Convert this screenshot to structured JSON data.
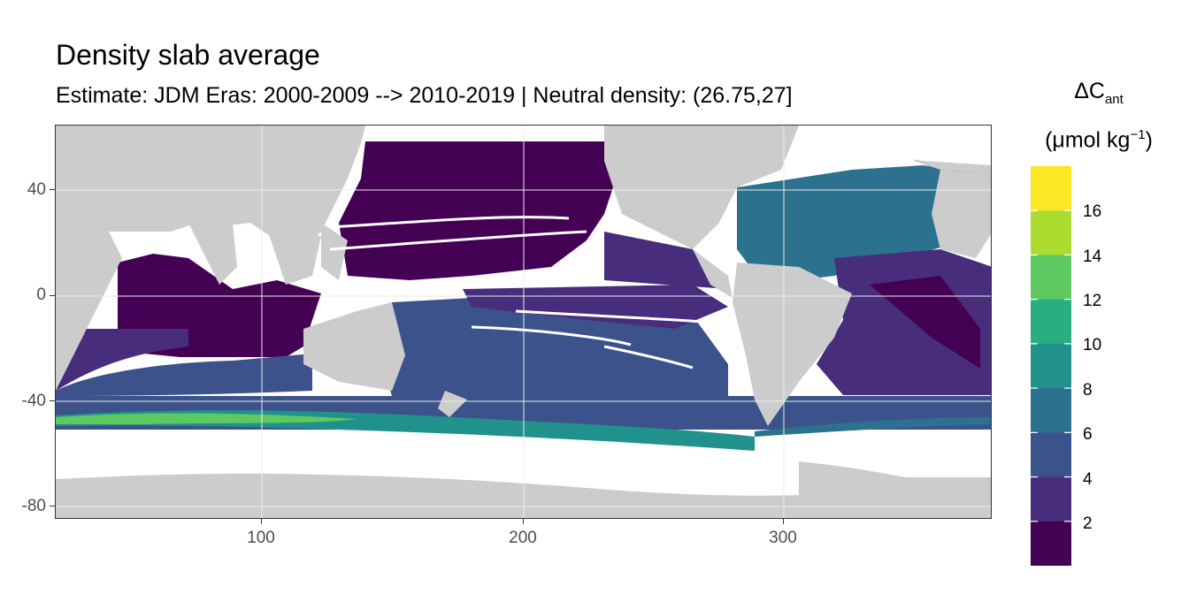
{
  "title": "Density slab average",
  "subtitle": "Estimate: JDM Eras: 2000-2009 --> 2010-2019 | Neutral density: (26.75,27]",
  "map": {
    "x_ticks": [
      "100",
      "200",
      "300"
    ],
    "y_ticks": [
      "40",
      "0",
      "-40",
      "-80"
    ],
    "xlim": [
      20,
      380
    ],
    "ylim": [
      -85,
      65
    ],
    "land_color": "#cccccc",
    "no_data_color": "#ffffff",
    "grid": true
  },
  "legend": {
    "title_main": "ΔC",
    "title_sub": "ant",
    "unit_open": "(μmol kg",
    "unit_sup": "−1",
    "unit_close": ")",
    "labels": [
      "16",
      "14",
      "12",
      "10",
      "8",
      "6",
      "4",
      "2"
    ],
    "colors": [
      "#fde725",
      "#addc30",
      "#5ec962",
      "#28ae80",
      "#21918c",
      "#2c728e",
      "#3b528b",
      "#472d7b",
      "#440154"
    ]
  }
}
